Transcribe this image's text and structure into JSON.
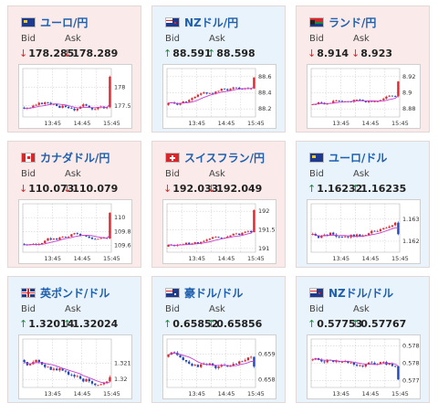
{
  "labels": {
    "bid": "Bid",
    "ask": "Ask"
  },
  "colors": {
    "down_bg": "#fbeaea",
    "up_bg": "#e9f3fb",
    "title": "#1e5fae",
    "down_arrow": "#d8262b",
    "up_arrow": "#1a8a3c",
    "ma_line": "#c73dd0"
  },
  "icons": {
    "down": "↓",
    "up": "↑"
  },
  "cards": [
    {
      "title": "ユーロ/円",
      "flag": "eu-flag-icon",
      "dir": "down",
      "bid": "178.285",
      "ask": "178.289",
      "chart": {
        "type": "candlestick",
        "ylim": [
          177.2,
          178.5
        ],
        "yticks": [
          {
            "v": 178,
            "label": "178"
          },
          {
            "v": 177.5,
            "label": "177.5"
          }
        ],
        "xticks": [
          "13:45",
          "14:45",
          "15:45"
        ],
        "start": 177.45,
        "drift": 0.006,
        "vol": 0.06,
        "last": 178.28,
        "seed": 3
      }
    },
    {
      "title": "NZドル/円",
      "flag": "nz-flag-icon",
      "dir": "up",
      "bid": "88.591",
      "ask": "88.598",
      "chart": {
        "type": "candlestick",
        "ylim": [
          88.1,
          88.7
        ],
        "yticks": [
          {
            "v": 88.6,
            "label": "88.6"
          },
          {
            "v": 88.4,
            "label": "88.4"
          },
          {
            "v": 88.2,
            "label": "88.2"
          }
        ],
        "xticks": [
          "13:45",
          "14:45",
          "15:45"
        ],
        "start": 88.25,
        "drift": 0.004,
        "vol": 0.025,
        "last": 88.59,
        "seed": 5
      }
    },
    {
      "title": "ランド/円",
      "flag": "za-flag-icon",
      "dir": "down",
      "bid": "8.914",
      "ask": "8.923",
      "chart": {
        "type": "candlestick",
        "ylim": [
          8.87,
          8.93
        ],
        "yticks": [
          {
            "v": 8.92,
            "label": "8.92"
          },
          {
            "v": 8.9,
            "label": "8.9"
          },
          {
            "v": 8.88,
            "label": "8.88"
          }
        ],
        "xticks": [
          "13:45",
          "14:45",
          "15:45"
        ],
        "start": 8.885,
        "drift": 0.0004,
        "vol": 0.0025,
        "last": 8.914,
        "seed": 7
      }
    },
    {
      "title": "カナダドル/円",
      "flag": "ca-flag-icon",
      "dir": "down",
      "bid": "110.073",
      "ask": "110.079",
      "chart": {
        "type": "candlestick",
        "ylim": [
          109.5,
          110.2
        ],
        "yticks": [
          {
            "v": 110,
            "label": "110"
          },
          {
            "v": 109.8,
            "label": "109.8"
          },
          {
            "v": 109.6,
            "label": "109.6"
          }
        ],
        "xticks": [
          "13:45",
          "14:45",
          "15:45"
        ],
        "start": 109.62,
        "drift": 0.005,
        "vol": 0.03,
        "last": 110.07,
        "seed": 9
      }
    },
    {
      "title": "スイスフラン/円",
      "flag": "ch-flag-icon",
      "dir": "down",
      "bid": "192.033",
      "ask": "192.049",
      "chart": {
        "type": "candlestick",
        "ylim": [
          190.9,
          192.2
        ],
        "yticks": [
          {
            "v": 192,
            "label": "192"
          },
          {
            "v": 191.5,
            "label": "191.5"
          },
          {
            "v": 191,
            "label": "191"
          }
        ],
        "xticks": [
          "13:45",
          "14:45",
          "15:45"
        ],
        "start": 191.05,
        "drift": 0.01,
        "vol": 0.05,
        "last": 192.03,
        "seed": 11
      }
    },
    {
      "title": "ユーロ/ドル",
      "flag": "eu-flag-icon",
      "dir": "up",
      "bid": "1.16232",
      "ask": "1.16235",
      "chart": {
        "type": "candlestick",
        "ylim": [
          1.1615,
          1.1637
        ],
        "yticks": [
          {
            "v": 1.163,
            "label": "1.163"
          },
          {
            "v": 1.162,
            "label": "1.162"
          }
        ],
        "xticks": [
          "13:45",
          "14:45",
          "15:45"
        ],
        "start": 1.1623,
        "drift": 1e-05,
        "vol": 0.00012,
        "last": 1.16232,
        "seed": 13
      }
    },
    {
      "title": "英ポンド/ドル",
      "flag": "gb-flag-icon",
      "dir": "up",
      "bid": "1.32014",
      "ask": "1.32024",
      "chart": {
        "type": "candlestick",
        "ylim": [
          1.3195,
          1.3225
        ],
        "yticks": [
          {
            "v": 1.321,
            "label": "1.321"
          },
          {
            "v": 1.32,
            "label": "1.32"
          }
        ],
        "xticks": [
          "13:45",
          "14:45",
          "15:45"
        ],
        "start": 1.3212,
        "drift": -3e-05,
        "vol": 0.00018,
        "last": 1.32014,
        "seed": 15
      }
    },
    {
      "title": "豪ドル/ドル",
      "flag": "au-flag-icon",
      "dir": "up",
      "bid": "0.65852",
      "ask": "0.65856",
      "chart": {
        "type": "candlestick",
        "ylim": [
          0.6577,
          0.6596
        ],
        "yticks": [
          {
            "v": 0.659,
            "label": "0.659"
          },
          {
            "v": 0.658,
            "label": "0.658"
          }
        ],
        "xticks": [
          "13:45",
          "14:45",
          "15:45"
        ],
        "start": 0.6589,
        "drift": -1e-05,
        "vol": 0.00012,
        "last": 0.65852,
        "seed": 17
      }
    },
    {
      "title": "NZドル/ドル",
      "flag": "nz-flag-icon",
      "dir": "up",
      "bid": "0.57753",
      "ask": "0.57767",
      "chart": {
        "type": "candlestick",
        "ylim": [
          0.5773,
          0.5787
        ],
        "yticks": [
          {
            "v": 0.5785,
            "label": "0.5785"
          },
          {
            "v": 0.578,
            "label": "0.578"
          },
          {
            "v": 0.5775,
            "label": "0.5775"
          }
        ],
        "xticks": [
          "13:45",
          "14:45",
          "15:45"
        ],
        "start": 0.5781,
        "drift": -8e-06,
        "vol": 8e-05,
        "last": 0.57753,
        "seed": 19
      }
    }
  ]
}
